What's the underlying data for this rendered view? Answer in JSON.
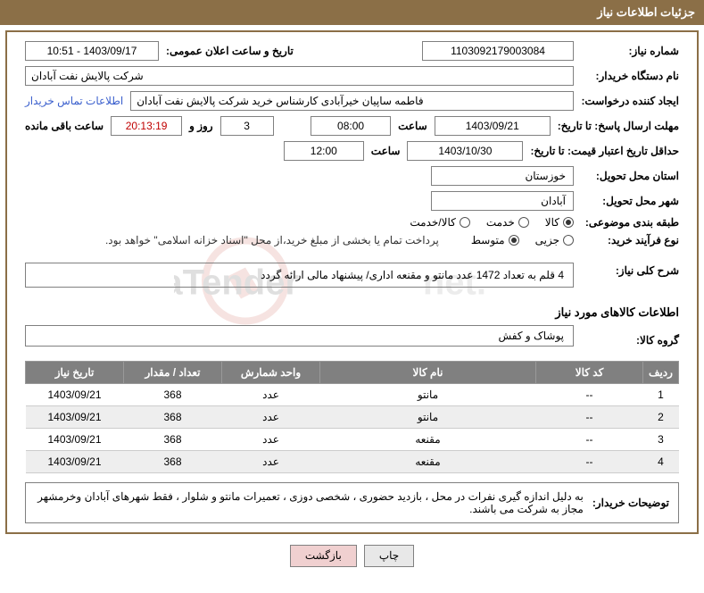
{
  "header_title": "جزئیات اطلاعات نیاز",
  "labels": {
    "need_number": "شماره نیاز:",
    "announce_date": "تاریخ و ساعت اعلان عمومی:",
    "buyer_org": "نام دستگاه خریدار:",
    "requester": "ایجاد کننده درخواست:",
    "contact_info": "اطلاعات تماس خریدار",
    "response_deadline_to": "مهلت ارسال پاسخ: تا تاریخ:",
    "time": "ساعت",
    "days_and": "روز و",
    "remaining": "ساعت باقی مانده",
    "price_validity_to": "حداقل تاریخ اعتبار قیمت: تا تاریخ:",
    "delivery_province": "استان محل تحویل:",
    "delivery_city": "شهر محل تحویل:",
    "subject_category": "طبقه بندی موضوعی:",
    "purchase_type": "نوع فرآیند خرید:",
    "general_desc": "شرح کلی نیاز:",
    "goods_info_title": "اطلاعات کالاهای مورد نیاز",
    "goods_group": "گروه کالا:",
    "buyer_notes": "توضیحات خریدار:"
  },
  "values": {
    "need_number": "1103092179003084",
    "announce_date": "1403/09/17 - 10:51",
    "buyer_org": "شرکت پالایش نفت آبادان",
    "requester": "فاطمه ساپیان خیرآبادی کارشناس خرید شرکت پالایش نفت آبادان",
    "response_date": "1403/09/21",
    "response_time": "08:00",
    "remaining_days": "3",
    "remaining_time": "20:13:19",
    "price_validity_date": "1403/10/30",
    "price_validity_time": "12:00",
    "province": "خوزستان",
    "city": "آبادان",
    "payment_note": "پرداخت تمام یا بخشی از مبلغ خرید،از محل \"اسناد خزانه اسلامی\" خواهد بود.",
    "general_desc": "4 قلم به تعداد 1472 عدد مانتو و مقنعه اداری/ پیشنهاد مالی ارائه گردد",
    "goods_group": "پوشاک و کفش",
    "buyer_notes": "به دلیل اندازه گیری نفرات در محل ، بازدید حضوری ، شخصی دوزی ، تعمیرات مانتو و شلوار ، فقط شهرهای آبادان وخرمشهر مجاز به شرکت می باشند."
  },
  "radios": {
    "category": {
      "options": [
        {
          "label": "کالا",
          "checked": true
        },
        {
          "label": "خدمت",
          "checked": false
        },
        {
          "label": "کالا/خدمت",
          "checked": false
        }
      ]
    },
    "purchase_type": {
      "options": [
        {
          "label": "جزیی",
          "checked": false
        },
        {
          "label": "متوسط",
          "checked": true
        }
      ]
    }
  },
  "table": {
    "headers": {
      "idx": "ردیف",
      "code": "کد کالا",
      "name": "نام کالا",
      "unit": "واحد شمارش",
      "qty": "تعداد / مقدار",
      "date": "تاریخ نیاز"
    },
    "rows": [
      {
        "idx": "1",
        "code": "--",
        "name": "مانتو",
        "unit": "عدد",
        "qty": "368",
        "date": "1403/09/21"
      },
      {
        "idx": "2",
        "code": "--",
        "name": "مانتو",
        "unit": "عدد",
        "qty": "368",
        "date": "1403/09/21"
      },
      {
        "idx": "3",
        "code": "--",
        "name": "مقنعه",
        "unit": "عدد",
        "qty": "368",
        "date": "1403/09/21"
      },
      {
        "idx": "4",
        "code": "--",
        "name": "مقنعه",
        "unit": "عدد",
        "qty": "368",
        "date": "1403/09/21"
      }
    ]
  },
  "buttons": {
    "print": "چاپ",
    "back": "بازگشت"
  },
  "colors": {
    "header_bg": "#8b6f47",
    "th_bg": "#808080",
    "alt_row": "#eeeeee",
    "link": "#3a5fcd",
    "red": "#c00000"
  }
}
